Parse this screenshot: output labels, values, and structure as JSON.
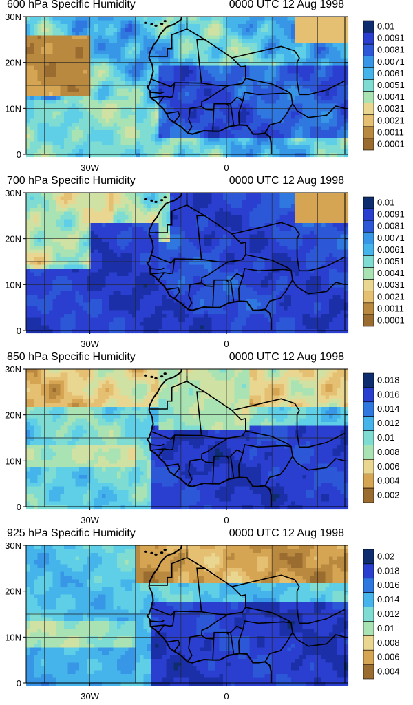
{
  "panels": [
    {
      "title": "600 hPa Specific Humidity",
      "time": "0000 UTC 12 Aug 1998",
      "lat_labels": [
        "30N",
        "20N",
        "10N",
        "0"
      ],
      "lon_labels": [
        "30W",
        "0"
      ],
      "colorbar": [
        "0.01",
        "0.0091",
        "0.0081",
        "0.0071",
        "0.0061",
        "0.0051",
        "0.0041",
        "0.0031",
        "0.0021",
        "0.0011",
        "0.0001"
      ]
    },
    {
      "title": "700 hPa Specific Humidity",
      "time": "0000 UTC 12 Aug 1998",
      "lat_labels": [
        "30N",
        "20N",
        "10N",
        "0"
      ],
      "lon_labels": [
        "30W",
        "0"
      ],
      "colorbar": [
        "0.01",
        "0.0091",
        "0.0081",
        "0.0071",
        "0.0061",
        "0.0051",
        "0.0041",
        "0.0031",
        "0.0021",
        "0.0011",
        "0.0001"
      ]
    },
    {
      "title": "850 hPa Specific Humidity",
      "time": "0000 UTC 12 Aug 1998",
      "lat_labels": [
        "30N",
        "20N",
        "10N",
        "0"
      ],
      "lon_labels": [
        "30W",
        "0"
      ],
      "colorbar": [
        "0.018",
        "0.016",
        "0.014",
        "0.012",
        "0.01",
        "0.008",
        "0.006",
        "0.004",
        "0.002"
      ]
    },
    {
      "title": "925 hPa Specific Humidity",
      "time": "0000 UTC 12 Aug 1998",
      "lat_labels": [
        "30N",
        "20N",
        "10N",
        "0"
      ],
      "lon_labels": [
        "30W",
        "0"
      ],
      "colorbar": [
        "0.02",
        "0.018",
        "0.016",
        "0.014",
        "0.012",
        "0.01",
        "0.008",
        "0.006",
        "0.004"
      ]
    }
  ],
  "palette": [
    "#0d2d6e",
    "#1b2fa8",
    "#2a3fcf",
    "#2c58d8",
    "#2f78e0",
    "#3896e6",
    "#45b4ea",
    "#5ecfe6",
    "#7fdcd3",
    "#a9e3b4",
    "#cfe2a4",
    "#e9d690",
    "#e6c072",
    "#d6a553",
    "#b98940",
    "#9a6c30"
  ]
}
